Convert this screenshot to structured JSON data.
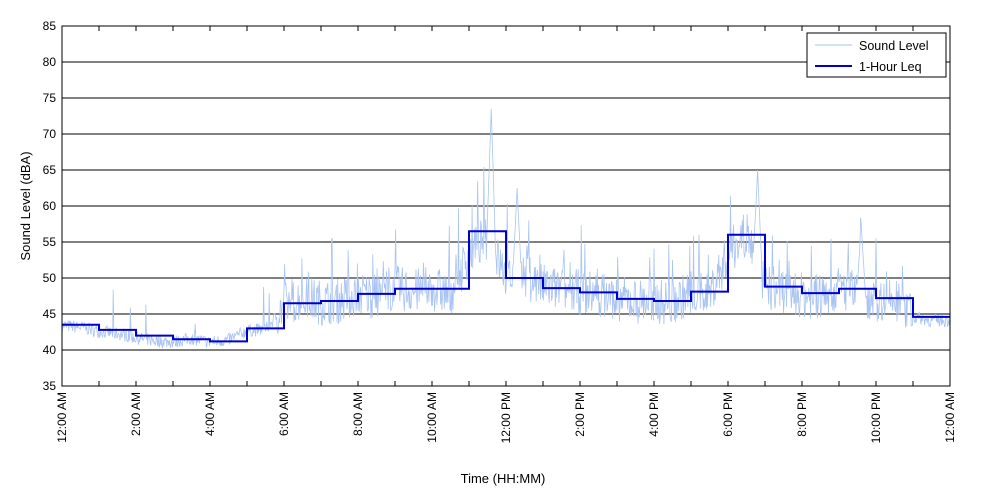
{
  "chart_data": {
    "type": "line",
    "xlabel": "Time (HH:MM)",
    "ylabel": "Sound Level (dBA)",
    "ylim": [
      35,
      85
    ],
    "yticks": [
      35,
      40,
      45,
      50,
      55,
      60,
      65,
      70,
      75,
      80,
      85
    ],
    "xlim": [
      0,
      24
    ],
    "x_unit": "hours since 12:00 AM",
    "xtick_labels": [
      "12:00 AM",
      "2:00 AM",
      "4:00 AM",
      "6:00 AM",
      "8:00 AM",
      "10:00 AM",
      "12:00 PM",
      "2:00 PM",
      "4:00 PM",
      "6:00 PM",
      "8:00 PM",
      "10:00 PM",
      "12:00 AM"
    ],
    "grid": "horizontal",
    "legend_position": "top-right",
    "colors": {
      "sound_level": "#a9c4f2",
      "leq": "#0000cc"
    },
    "series": [
      {
        "name": "Sound Level",
        "style": "thin light-blue line",
        "x": [
          0,
          0.5,
          1,
          1.5,
          2,
          2.5,
          3,
          3.5,
          4,
          4.5,
          5,
          5.5,
          6,
          6.5,
          7,
          7.5,
          8,
          8.5,
          9,
          9.5,
          10,
          10.5,
          11,
          11.5,
          12,
          12.5,
          13,
          13.5,
          14,
          14.5,
          15,
          15.5,
          16,
          16.5,
          17,
          17.5,
          18,
          18.5,
          19,
          19.5,
          20,
          20.5,
          21,
          21.5,
          22,
          22.5,
          23,
          23.5
        ],
        "values": [
          43.3,
          43.1,
          42.5,
          42.2,
          41.6,
          41.2,
          41.0,
          41.5,
          41.0,
          41.3,
          42.6,
          42.8,
          45.8,
          47.0,
          46.3,
          46.5,
          47.5,
          47.2,
          48.3,
          47.8,
          48.2,
          47.5,
          53.0,
          55.5,
          49.8,
          50.0,
          48.5,
          48.0,
          47.7,
          47.5,
          46.8,
          46.5,
          46.5,
          46.2,
          47.8,
          47.5,
          53.0,
          56.0,
          48.3,
          48.0,
          47.3,
          47.0,
          48.3,
          47.5,
          46.8,
          46.5,
          44.5,
          44.0
        ],
        "peaks": [
          {
            "x": 11.6,
            "y": 73.5
          },
          {
            "x": 12.3,
            "y": 62.5
          },
          {
            "x": 18.8,
            "y": 65.0
          },
          {
            "x": 21.6,
            "y": 57.5
          }
        ]
      },
      {
        "name": "1-Hour Leq",
        "style": "thick dark-blue step line",
        "x": [
          0,
          1,
          2,
          3,
          4,
          5,
          6,
          7,
          8,
          9,
          10,
          11,
          12,
          13,
          14,
          15,
          16,
          17,
          18,
          19,
          20,
          21,
          22,
          23
        ],
        "values": [
          43.5,
          42.8,
          42.0,
          41.5,
          41.2,
          43.0,
          46.5,
          46.8,
          47.8,
          48.5,
          48.5,
          56.5,
          50.0,
          48.6,
          48.0,
          47.1,
          46.8,
          48.1,
          56.0,
          48.8,
          47.9,
          48.5,
          47.2,
          44.6
        ]
      }
    ]
  }
}
